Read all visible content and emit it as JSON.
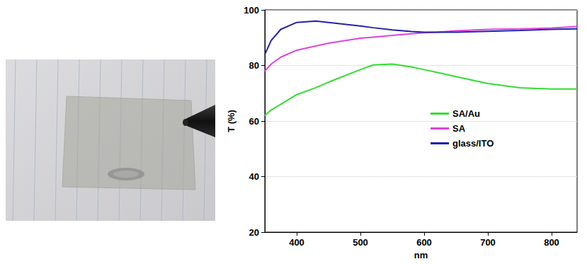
{
  "chart_data": {
    "type": "line",
    "x": [
      350,
      360,
      375,
      400,
      430,
      450,
      500,
      520,
      550,
      580,
      600,
      620,
      650,
      700,
      750,
      800,
      840
    ],
    "series": [
      {
        "name": "SA/Au",
        "color": "#33dd33",
        "values": [
          62,
          64,
          66,
          69.5,
          72,
          74,
          78.5,
          80.2,
          80.5,
          79.5,
          78.5,
          77.5,
          76,
          73.5,
          72,
          71.5,
          71.5
        ]
      },
      {
        "name": "SA",
        "color": "#dd44dd",
        "values": [
          78,
          80.5,
          83,
          85.5,
          87,
          88,
          89.8,
          90.2,
          90.8,
          91.4,
          91.8,
          92,
          92.5,
          93,
          93.2,
          93.5,
          94
        ]
      },
      {
        "name": "glass/ITO",
        "color": "#2222aa",
        "values": [
          84,
          89,
          93,
          95.5,
          96,
          95.5,
          94.2,
          93.6,
          92.8,
          92.2,
          92,
          92,
          92,
          92.3,
          92.6,
          93,
          93.2
        ]
      }
    ],
    "x_label": "nm",
    "y_label": "T (%)",
    "xlim": [
      350,
      840
    ],
    "xticks": [
      400,
      500,
      600,
      700,
      800
    ],
    "ylim": [
      20,
      100
    ],
    "yticks": [
      20,
      40,
      60,
      80,
      100
    ],
    "grid": true,
    "legend": "right"
  }
}
